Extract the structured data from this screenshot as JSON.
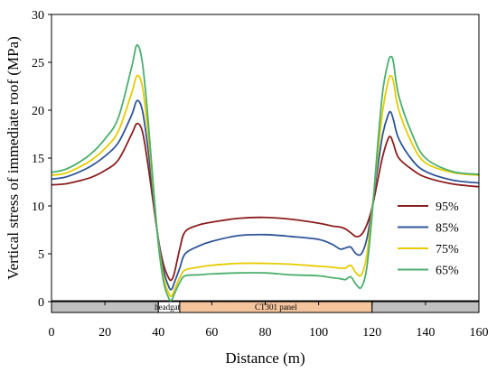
{
  "chart_data": {
    "type": "line",
    "xlabel": "Distance (m)",
    "ylabel": "Vertical stress of immediate roof (MPa)",
    "xlim": [
      0,
      160
    ],
    "ylim": [
      0,
      30
    ],
    "x_ticks": [
      "0",
      "20",
      "40",
      "60",
      "80",
      "100",
      "120",
      "140",
      "160"
    ],
    "y_ticks": [
      "0",
      "5",
      "10",
      "15",
      "20",
      "25",
      "30"
    ],
    "grid": false,
    "legend_position": "right",
    "x": [
      0,
      5,
      10,
      15,
      20,
      25,
      30,
      32,
      34,
      36,
      38,
      40,
      42,
      44,
      45,
      46,
      48,
      50,
      55,
      60,
      70,
      80,
      90,
      100,
      105,
      108,
      110,
      112,
      114,
      116,
      118,
      120,
      122,
      124,
      126,
      127,
      128,
      130,
      135,
      140,
      150,
      160
    ],
    "series": [
      {
        "name": "95%",
        "color": "#8b1e1e",
        "values": [
          12.2,
          12.3,
          12.6,
          13.0,
          13.7,
          14.8,
          17.5,
          18.6,
          17.8,
          14.5,
          10.5,
          6.5,
          3.8,
          2.4,
          2.3,
          3.0,
          5.5,
          7.3,
          8.0,
          8.3,
          8.7,
          8.8,
          8.6,
          8.2,
          7.9,
          7.8,
          7.6,
          7.2,
          6.8,
          7.0,
          8.0,
          9.8,
          12.5,
          15.2,
          17.0,
          17.2,
          16.5,
          15.0,
          13.8,
          13.0,
          12.3,
          12.0
        ]
      },
      {
        "name": "85%",
        "color": "#2f5597",
        "values": [
          12.8,
          13.0,
          13.5,
          14.2,
          15.2,
          16.6,
          19.5,
          21.0,
          20.0,
          16.2,
          11.2,
          6.5,
          3.2,
          1.5,
          1.3,
          2.0,
          3.5,
          5.0,
          5.8,
          6.3,
          6.9,
          7.0,
          6.8,
          6.5,
          6.0,
          5.5,
          5.6,
          5.7,
          5.0,
          5.0,
          6.5,
          9.8,
          13.8,
          17.5,
          19.5,
          19.8,
          19.0,
          17.0,
          14.8,
          13.6,
          12.7,
          12.4
        ]
      },
      {
        "name": "75%",
        "color": "#e6cc00",
        "values": [
          13.2,
          13.4,
          14.0,
          14.8,
          16.0,
          17.8,
          21.8,
          23.6,
          22.5,
          18.0,
          12.0,
          6.2,
          2.5,
          0.8,
          0.6,
          1.2,
          2.5,
          3.3,
          3.6,
          3.8,
          4.0,
          4.0,
          3.9,
          3.7,
          3.6,
          3.5,
          3.5,
          3.8,
          3.0,
          2.8,
          4.8,
          9.5,
          15.0,
          20.0,
          23.0,
          23.6,
          23.0,
          20.0,
          16.5,
          14.5,
          13.5,
          13.2
        ]
      },
      {
        "name": "65%",
        "color": "#4caf6e",
        "values": [
          13.5,
          13.8,
          14.5,
          15.5,
          17.0,
          19.2,
          24.5,
          26.8,
          25.0,
          19.5,
          12.5,
          6.0,
          2.0,
          0.3,
          0.2,
          0.8,
          2.0,
          2.7,
          2.8,
          2.9,
          3.0,
          3.0,
          2.8,
          2.7,
          2.5,
          2.4,
          2.3,
          2.6,
          1.8,
          1.5,
          3.5,
          9.0,
          16.0,
          22.0,
          25.0,
          25.6,
          25.0,
          21.5,
          17.5,
          15.0,
          13.6,
          13.3
        ]
      }
    ],
    "strip": {
      "segments": [
        {
          "from": 0,
          "to": 40,
          "label": "",
          "color": "#c0c0c0"
        },
        {
          "from": 40,
          "to": 48,
          "label": "headgate",
          "color": "#ffffff"
        },
        {
          "from": 48,
          "to": 120,
          "label": "CT301 panel",
          "color": "#f4c49c"
        },
        {
          "from": 120,
          "to": 160,
          "label": "",
          "color": "#c0c0c0"
        }
      ]
    }
  }
}
